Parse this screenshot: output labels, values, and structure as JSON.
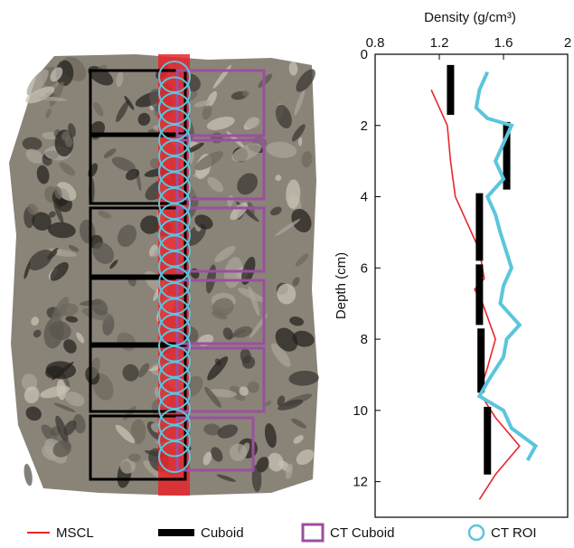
{
  "chart_data": {
    "type": "profile",
    "xlabel": "Density (g/cm³)",
    "ylabel": "Depth (cm)",
    "xlim": [
      0.8,
      2
    ],
    "xticks": [
      0.8,
      1.2,
      1.6,
      2
    ],
    "ylim": [
      0,
      13
    ],
    "yticks": [
      0,
      2,
      4,
      6,
      8,
      10,
      12
    ],
    "series": [
      {
        "name": "MSCL",
        "kind": "line",
        "color": "#e8262b",
        "depth": [
          1.0,
          1.5,
          2,
          3,
          4,
          4.8,
          5.5,
          6.3,
          6.6,
          7,
          8,
          8.8,
          9.5,
          10.2,
          11,
          11.8,
          12.5
        ],
        "values": [
          1.15,
          1.2,
          1.25,
          1.27,
          1.3,
          1.38,
          1.45,
          1.48,
          1.42,
          1.47,
          1.55,
          1.5,
          1.45,
          1.55,
          1.7,
          1.55,
          1.45
        ]
      },
      {
        "name": "Cuboid",
        "kind": "segments",
        "color": "#000000",
        "top": [
          0.3,
          1.9,
          3.9,
          5.9,
          7.7,
          9.9
        ],
        "bottom": [
          1.7,
          3.8,
          5.8,
          7.6,
          9.5,
          11.8
        ],
        "values": [
          1.27,
          1.62,
          1.45,
          1.45,
          1.46,
          1.5
        ]
      },
      {
        "name": "CT ROI",
        "kind": "line",
        "color": "#5bc5dc",
        "depth": [
          0.5,
          1.0,
          1.5,
          1.8,
          2,
          2.5,
          3,
          3.5,
          4,
          4.5,
          5,
          6,
          6.5,
          7,
          7.6,
          8,
          8.5,
          9.2,
          9.6,
          10,
          10.5,
          11,
          11.4
        ],
        "values": [
          1.5,
          1.45,
          1.43,
          1.5,
          1.65,
          1.6,
          1.55,
          1.6,
          1.5,
          1.55,
          1.58,
          1.65,
          1.6,
          1.58,
          1.7,
          1.62,
          1.6,
          1.5,
          1.45,
          1.6,
          1.65,
          1.8,
          1.75
        ]
      }
    ],
    "ct_cuboid": {
      "name": "CT Cuboid",
      "color": "#9b4fa0"
    }
  }
}
